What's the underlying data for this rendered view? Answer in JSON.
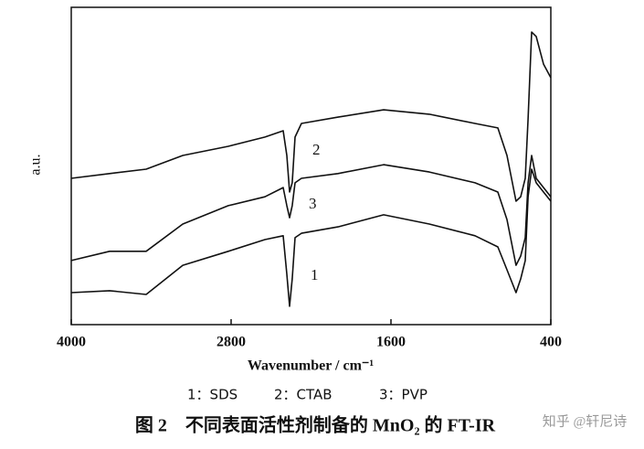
{
  "chart_data": {
    "type": "line",
    "ylabel": "a.u.",
    "xlabel": "Wavenumber / cm⁻¹",
    "xlim": [
      4000,
      400
    ],
    "xticks": [
      4000,
      2800,
      1600,
      400
    ],
    "ylim": [
      0,
      100
    ],
    "x": [
      4000,
      3712,
      3438,
      3163,
      2821,
      2546,
      2409,
      2382,
      2361,
      2341,
      2320,
      2272,
      1998,
      1655,
      1312,
      969,
      798,
      729,
      661,
      626,
      592,
      571,
      544,
      510,
      455,
      400
    ],
    "series": [
      {
        "name": "1",
        "color": "#111111",
        "values": [
          10.1,
          10.7,
          9.5,
          18.7,
          23.1,
          26.8,
          28.0,
          15.9,
          5.8,
          14.4,
          27.4,
          28.8,
          30.8,
          34.6,
          31.7,
          28.0,
          24.5,
          17.3,
          10.1,
          14.4,
          20.2,
          40.3,
          49.0,
          44.7,
          41.8,
          38.9
        ]
      },
      {
        "name": "2",
        "color": "#111111",
        "values": [
          46.1,
          47.6,
          49.0,
          53.3,
          56.2,
          59.1,
          61.1,
          53.3,
          41.8,
          44.7,
          59.1,
          63.4,
          65.4,
          67.7,
          66.3,
          63.4,
          62.0,
          53.3,
          38.9,
          40.3,
          46.1,
          64.8,
          92.2,
          90.8,
          82.1,
          77.8
        ]
      },
      {
        "name": "3",
        "color": "#111111",
        "values": [
          20.2,
          23.1,
          23.1,
          31.7,
          37.5,
          40.3,
          43.2,
          37.5,
          33.7,
          37.5,
          44.7,
          46.1,
          47.6,
          50.4,
          48.1,
          44.7,
          41.8,
          33.1,
          18.7,
          21.6,
          27.4,
          44.7,
          53.3,
          46.1,
          43.2,
          40.3
        ]
      }
    ],
    "legend": [
      "1：SDS",
      "2：CTAB",
      "3：PVP"
    ]
  },
  "caption": "图 2　不同表面活性剂制备的 MnO₂ 的 FT-IR",
  "watermark": "知乎 @轩尼诗"
}
